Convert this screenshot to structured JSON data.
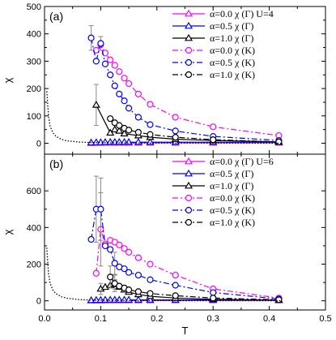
{
  "chart_data": [
    {
      "type": "line",
      "panel_label": "(a)",
      "xlabel": "",
      "ylabel": "χ",
      "xlim": [
        0.0,
        0.5
      ],
      "ylim": [
        -40,
        500
      ],
      "x_ticks": [
        0.0,
        0.1,
        0.2,
        0.3,
        0.4,
        0.5
      ],
      "y_ticks": [
        0,
        100,
        200,
        300,
        400,
        500
      ],
      "x_tick_labels": [
        "",
        "",
        "",
        "",
        "",
        ""
      ],
      "y_tick_labels": [
        "0",
        "100",
        "200",
        "300",
        "400",
        "500"
      ],
      "legend_position": "top-right",
      "series": [
        {
          "name": "α=0.0   χ (Γ) U=4",
          "color": "#ff00ff",
          "marker": "triangle",
          "dash": "solid",
          "x": [
            0.083,
            0.092,
            0.1,
            0.108,
            0.117,
            0.125,
            0.133,
            0.142,
            0.15,
            0.167,
            0.188,
            0.233,
            0.3,
            0.417
          ],
          "y": [
            0.5,
            1,
            1,
            1.5,
            1.5,
            1.5,
            1.5,
            1.5,
            1.5,
            1.5,
            1.5,
            1.5,
            1.5,
            1.5
          ]
        },
        {
          "name": "α=0.5   χ (Γ)",
          "color": "#0000ff",
          "marker": "triangle",
          "dash": "solid",
          "x": [
            0.083,
            0.092,
            0.1,
            0.108,
            0.117,
            0.125,
            0.133,
            0.142,
            0.15,
            0.167,
            0.188,
            0.233,
            0.3,
            0.417
          ],
          "y": [
            2,
            3,
            3,
            3.5,
            4,
            4,
            4,
            4,
            4,
            4,
            4,
            4,
            4,
            4
          ]
        },
        {
          "name": "α=1.0   χ (Γ)",
          "color": "#000000",
          "marker": "triangle",
          "dash": "solid",
          "x": [
            0.092,
            0.117,
            0.125,
            0.133,
            0.142,
            0.167,
            0.188,
            0.233,
            0.3,
            0.417
          ],
          "y": [
            140,
            38,
            50,
            45,
            35,
            28,
            22,
            15,
            10,
            5
          ],
          "err": [
            75,
            0,
            0,
            0,
            0,
            0,
            0,
            0,
            0,
            0
          ]
        },
        {
          "name": "α=0.0   χ (K)",
          "color": "#ff00ff",
          "marker": "circle",
          "dash": "dashdot",
          "x": [
            0.092,
            0.1,
            0.108,
            0.117,
            0.125,
            0.133,
            0.142,
            0.15,
            0.167,
            0.188,
            0.233,
            0.3,
            0.417
          ],
          "y": [
            340,
            360,
            330,
            305,
            285,
            262,
            238,
            218,
            180,
            142,
            95,
            60,
            28
          ]
        },
        {
          "name": "α=0.5   χ (K)",
          "color": "#0000ff",
          "marker": "circle",
          "dash": "dashdot",
          "x": [
            0.083,
            0.092,
            0.1,
            0.108,
            0.117,
            0.125,
            0.133,
            0.142,
            0.15,
            0.167,
            0.188,
            0.233,
            0.3,
            0.417
          ],
          "y": [
            385,
            300,
            365,
            290,
            250,
            210,
            180,
            155,
            128,
            95,
            68,
            45,
            25,
            10
          ],
          "err": [
            45,
            0,
            25,
            0,
            0,
            0,
            0,
            0,
            0,
            0,
            0,
            0,
            0,
            0
          ]
        },
        {
          "name": "α=1.0   χ (K)",
          "color": "#000000",
          "marker": "circle",
          "dash": "dashdot",
          "x": [
            0.117,
            0.125,
            0.133,
            0.142,
            0.15,
            0.167,
            0.188,
            0.233,
            0.3,
            0.417
          ],
          "y": [
            90,
            75,
            65,
            55,
            48,
            40,
            32,
            22,
            13,
            5
          ]
        },
        {
          "name": "",
          "color": "#000000",
          "marker": "none",
          "dash": "dotted",
          "x": [
            0.004,
            0.007,
            0.01,
            0.015,
            0.02,
            0.03,
            0.04,
            0.06,
            0.08,
            0.12,
            0.2,
            0.3,
            0.42
          ],
          "y": [
            190,
            100,
            62,
            38,
            26,
            14,
            9,
            4.5,
            2.8,
            1.5,
            0.8,
            0.5,
            0.3
          ]
        }
      ]
    },
    {
      "type": "line",
      "panel_label": "(b)",
      "xlabel": "T",
      "ylabel": "χ",
      "xlim": [
        0.0,
        0.5
      ],
      "ylim": [
        -50,
        800
      ],
      "x_ticks": [
        0.0,
        0.1,
        0.2,
        0.3,
        0.4,
        0.5
      ],
      "y_ticks": [
        0,
        200,
        400,
        600
      ],
      "x_tick_labels": [
        "0.0",
        "0.1",
        "0.2",
        "0.3",
        "0.4",
        "0.5"
      ],
      "y_tick_labels": [
        "0",
        "200",
        "400",
        "600"
      ],
      "legend_position": "top-right",
      "series": [
        {
          "name": "α=0.0   χ (Γ) U=6",
          "color": "#ff00ff",
          "marker": "triangle",
          "dash": "solid",
          "x": [
            0.083,
            0.092,
            0.1,
            0.108,
            0.117,
            0.125,
            0.133,
            0.142,
            0.15,
            0.167,
            0.188,
            0.233,
            0.3,
            0.417
          ],
          "y": [
            1,
            1,
            1.5,
            1.5,
            2,
            2,
            2,
            2,
            2,
            2,
            2,
            2,
            2,
            2
          ]
        },
        {
          "name": "α=0.5   χ (Γ)",
          "color": "#0000ff",
          "marker": "triangle",
          "dash": "solid",
          "x": [
            0.083,
            0.092,
            0.1,
            0.108,
            0.117,
            0.125,
            0.133,
            0.142,
            0.15,
            0.167,
            0.188,
            0.233,
            0.3,
            0.417
          ],
          "y": [
            3,
            4,
            4,
            5,
            5,
            5,
            5,
            5,
            5,
            5,
            5,
            5,
            5,
            5
          ]
        },
        {
          "name": "α=1.0   χ (Γ)",
          "color": "#000000",
          "marker": "triangle",
          "dash": "solid",
          "x": [
            0.1,
            0.108,
            0.117,
            0.125,
            0.133,
            0.142,
            0.15,
            0.167,
            0.188,
            0.233,
            0.3,
            0.417
          ],
          "y": [
            65,
            75,
            85,
            90,
            75,
            60,
            48,
            35,
            25,
            15,
            8,
            4
          ],
          "err": [
            30,
            0,
            0,
            25,
            0,
            0,
            0,
            0,
            0,
            0,
            0,
            0
          ]
        },
        {
          "name": "α=0.0   χ (K)",
          "color": "#ff00ff",
          "marker": "circle",
          "dash": "dashdot",
          "x": [
            0.092,
            0.1,
            0.108,
            0.117,
            0.125,
            0.133,
            0.142,
            0.15,
            0.167,
            0.188,
            0.233,
            0.3,
            0.417
          ],
          "y": [
            150,
            390,
            310,
            330,
            320,
            305,
            285,
            265,
            235,
            200,
            140,
            65,
            15
          ],
          "err": [
            0,
            200,
            0,
            0,
            0,
            0,
            0,
            0,
            0,
            0,
            0,
            0,
            0
          ]
        },
        {
          "name": "α=0.5   χ (K)",
          "color": "#0000ff",
          "marker": "circle",
          "dash": "dashdot",
          "x": [
            0.083,
            0.092,
            0.1,
            0.108,
            0.117,
            0.125,
            0.133,
            0.142,
            0.15,
            0.167,
            0.188,
            0.233,
            0.3,
            0.417
          ],
          "y": [
            335,
            500,
            500,
            300,
            280,
            205,
            185,
            175,
            155,
            140,
            115,
            85,
            45,
            10
          ],
          "err": [
            0,
            180,
            170,
            0,
            0,
            60,
            0,
            0,
            0,
            0,
            0,
            0,
            0,
            0
          ]
        },
        {
          "name": "α=1.0   χ (K)",
          "color": "#000000",
          "marker": "circle",
          "dash": "dashdot",
          "x": [
            0.117,
            0.125,
            0.133,
            0.142,
            0.15,
            0.167,
            0.188,
            0.233,
            0.3,
            0.417
          ],
          "y": [
            130,
            95,
            80,
            70,
            60,
            50,
            40,
            28,
            15,
            6
          ],
          "err": [
            60,
            45,
            0,
            0,
            0,
            0,
            0,
            0,
            0,
            0
          ]
        },
        {
          "name": "",
          "color": "#000000",
          "marker": "none",
          "dash": "dotted",
          "x": [
            0.004,
            0.007,
            0.01,
            0.015,
            0.02,
            0.03,
            0.04,
            0.06,
            0.08,
            0.12,
            0.2,
            0.3,
            0.42
          ],
          "y": [
            290,
            150,
            95,
            58,
            40,
            22,
            14,
            7,
            4,
            2,
            1,
            0.6,
            0.3
          ]
        }
      ]
    }
  ]
}
